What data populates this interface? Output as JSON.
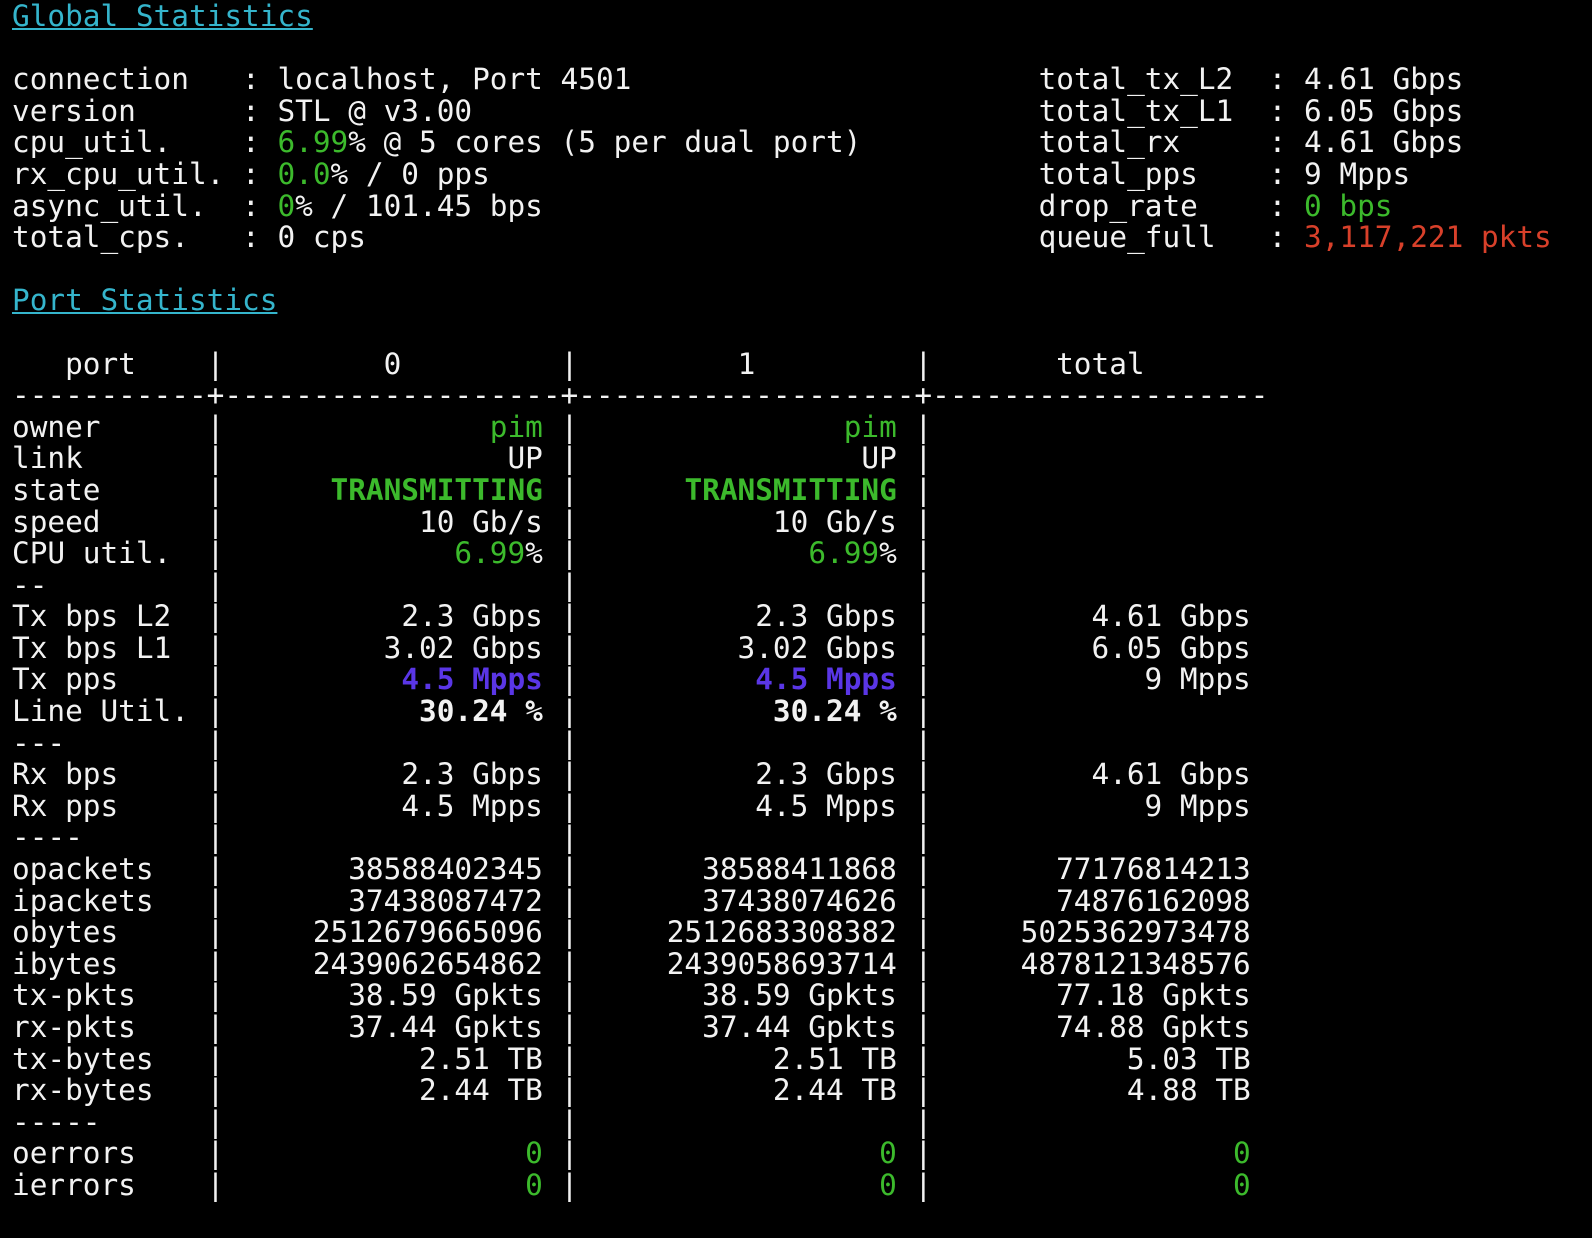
{
  "global_stats": {
    "heading": "Global Statistics",
    "left": [
      {
        "label": "connection",
        "value": [
          {
            "t": "localhost, Port 4501"
          }
        ]
      },
      {
        "label": "version",
        "value": [
          {
            "t": "STL @ v3.00"
          }
        ]
      },
      {
        "label": "cpu_util.",
        "value": [
          {
            "t": "6.99",
            "c": "green"
          },
          {
            "t": "% @ 5 cores (5 per dual port)"
          }
        ]
      },
      {
        "label": "rx_cpu_util.",
        "value": [
          {
            "t": "0.0",
            "c": "green"
          },
          {
            "t": "% / 0 pps"
          }
        ]
      },
      {
        "label": "async_util.",
        "value": [
          {
            "t": "0",
            "c": "green"
          },
          {
            "t": "% / 101.45 bps"
          }
        ]
      },
      {
        "label": "total_cps.",
        "value": [
          {
            "t": "0 cps"
          }
        ]
      }
    ],
    "right": [
      {
        "label": "total_tx_L2",
        "value": [
          {
            "t": "4.61 Gbps"
          }
        ]
      },
      {
        "label": "total_tx_L1",
        "value": [
          {
            "t": "6.05 Gbps"
          }
        ]
      },
      {
        "label": "total_rx",
        "value": [
          {
            "t": "4.61 Gbps"
          }
        ]
      },
      {
        "label": "total_pps",
        "value": [
          {
            "t": "9 Mpps"
          }
        ]
      },
      {
        "label": "drop_rate",
        "value": [
          {
            "t": "0 bps",
            "c": "green"
          }
        ]
      },
      {
        "label": "queue_full",
        "value": [
          {
            "t": "3,117,221 pkts",
            "c": "red"
          }
        ]
      }
    ]
  },
  "port_stats": {
    "heading": "Port Statistics",
    "columns": [
      "port",
      "0",
      "1",
      "total"
    ],
    "rows": [
      {
        "label": "owner",
        "cells": [
          [
            {
              "t": "pim",
              "c": "green"
            }
          ],
          [
            {
              "t": "pim",
              "c": "green"
            }
          ],
          []
        ]
      },
      {
        "label": "link",
        "cells": [
          [
            {
              "t": "UP"
            }
          ],
          [
            {
              "t": "UP"
            }
          ],
          []
        ]
      },
      {
        "label": "state",
        "cells": [
          [
            {
              "t": "TRANSMITTING",
              "c": "bgreen"
            }
          ],
          [
            {
              "t": "TRANSMITTING",
              "c": "bgreen"
            }
          ],
          []
        ]
      },
      {
        "label": "speed",
        "cells": [
          [
            {
              "t": "10 Gb/s"
            }
          ],
          [
            {
              "t": "10 Gb/s"
            }
          ],
          []
        ]
      },
      {
        "label": "CPU util.",
        "cells": [
          [
            {
              "t": "6.99",
              "c": "green"
            },
            {
              "t": "%"
            }
          ],
          [
            {
              "t": "6.99",
              "c": "green"
            },
            {
              "t": "%"
            }
          ],
          []
        ]
      },
      {
        "label": "--",
        "cells": [
          [],
          [],
          []
        ]
      },
      {
        "label": "Tx bps L2",
        "cells": [
          [
            {
              "t": "2.3 Gbps"
            }
          ],
          [
            {
              "t": "2.3 Gbps"
            }
          ],
          [
            {
              "t": "4.61 Gbps"
            }
          ]
        ]
      },
      {
        "label": "Tx bps L1",
        "cells": [
          [
            {
              "t": "3.02 Gbps"
            }
          ],
          [
            {
              "t": "3.02 Gbps"
            }
          ],
          [
            {
              "t": "6.05 Gbps"
            }
          ]
        ]
      },
      {
        "label": "Tx pps",
        "cells": [
          [
            {
              "t": "4.5 Mpps",
              "c": "blue"
            }
          ],
          [
            {
              "t": "4.5 Mpps",
              "c": "blue"
            }
          ],
          [
            {
              "t": "9 Mpps"
            }
          ]
        ]
      },
      {
        "label": "Line Util.",
        "cells": [
          [
            {
              "t": "30.24 %",
              "c": "bold"
            }
          ],
          [
            {
              "t": "30.24 %",
              "c": "bold"
            }
          ],
          []
        ]
      },
      {
        "label": "---",
        "cells": [
          [],
          [],
          []
        ]
      },
      {
        "label": "Rx bps",
        "cells": [
          [
            {
              "t": "2.3 Gbps"
            }
          ],
          [
            {
              "t": "2.3 Gbps"
            }
          ],
          [
            {
              "t": "4.61 Gbps"
            }
          ]
        ]
      },
      {
        "label": "Rx pps",
        "cells": [
          [
            {
              "t": "4.5 Mpps"
            }
          ],
          [
            {
              "t": "4.5 Mpps"
            }
          ],
          [
            {
              "t": "9 Mpps"
            }
          ]
        ]
      },
      {
        "label": "----",
        "cells": [
          [],
          [],
          []
        ]
      },
      {
        "label": "opackets",
        "cells": [
          [
            {
              "t": "38588402345"
            }
          ],
          [
            {
              "t": "38588411868"
            }
          ],
          [
            {
              "t": "77176814213"
            }
          ]
        ]
      },
      {
        "label": "ipackets",
        "cells": [
          [
            {
              "t": "37438087472"
            }
          ],
          [
            {
              "t": "37438074626"
            }
          ],
          [
            {
              "t": "74876162098"
            }
          ]
        ]
      },
      {
        "label": "obytes",
        "cells": [
          [
            {
              "t": "2512679665096"
            }
          ],
          [
            {
              "t": "2512683308382"
            }
          ],
          [
            {
              "t": "5025362973478"
            }
          ]
        ]
      },
      {
        "label": "ibytes",
        "cells": [
          [
            {
              "t": "2439062654862"
            }
          ],
          [
            {
              "t": "2439058693714"
            }
          ],
          [
            {
              "t": "4878121348576"
            }
          ]
        ]
      },
      {
        "label": "tx-pkts",
        "cells": [
          [
            {
              "t": "38.59 Gpkts"
            }
          ],
          [
            {
              "t": "38.59 Gpkts"
            }
          ],
          [
            {
              "t": "77.18 Gpkts"
            }
          ]
        ]
      },
      {
        "label": "rx-pkts",
        "cells": [
          [
            {
              "t": "37.44 Gpkts"
            }
          ],
          [
            {
              "t": "37.44 Gpkts"
            }
          ],
          [
            {
              "t": "74.88 Gpkts"
            }
          ]
        ]
      },
      {
        "label": "tx-bytes",
        "cells": [
          [
            {
              "t": "2.51 TB"
            }
          ],
          [
            {
              "t": "2.51 TB"
            }
          ],
          [
            {
              "t": "5.03 TB"
            }
          ]
        ]
      },
      {
        "label": "rx-bytes",
        "cells": [
          [
            {
              "t": "2.44 TB"
            }
          ],
          [
            {
              "t": "2.44 TB"
            }
          ],
          [
            {
              "t": "4.88 TB"
            }
          ]
        ]
      },
      {
        "label": "-----",
        "cells": [
          [],
          [],
          []
        ]
      },
      {
        "label": "oerrors",
        "cells": [
          [
            {
              "t": "0",
              "c": "green"
            }
          ],
          [
            {
              "t": "0",
              "c": "green"
            }
          ],
          [
            {
              "t": "0",
              "c": "green"
            }
          ]
        ]
      },
      {
        "label": "ierrors",
        "cells": [
          [
            {
              "t": "0",
              "c": "green"
            }
          ],
          [
            {
              "t": "0",
              "c": "green"
            }
          ],
          [
            {
              "t": "0",
              "c": "green"
            }
          ]
        ]
      }
    ]
  }
}
